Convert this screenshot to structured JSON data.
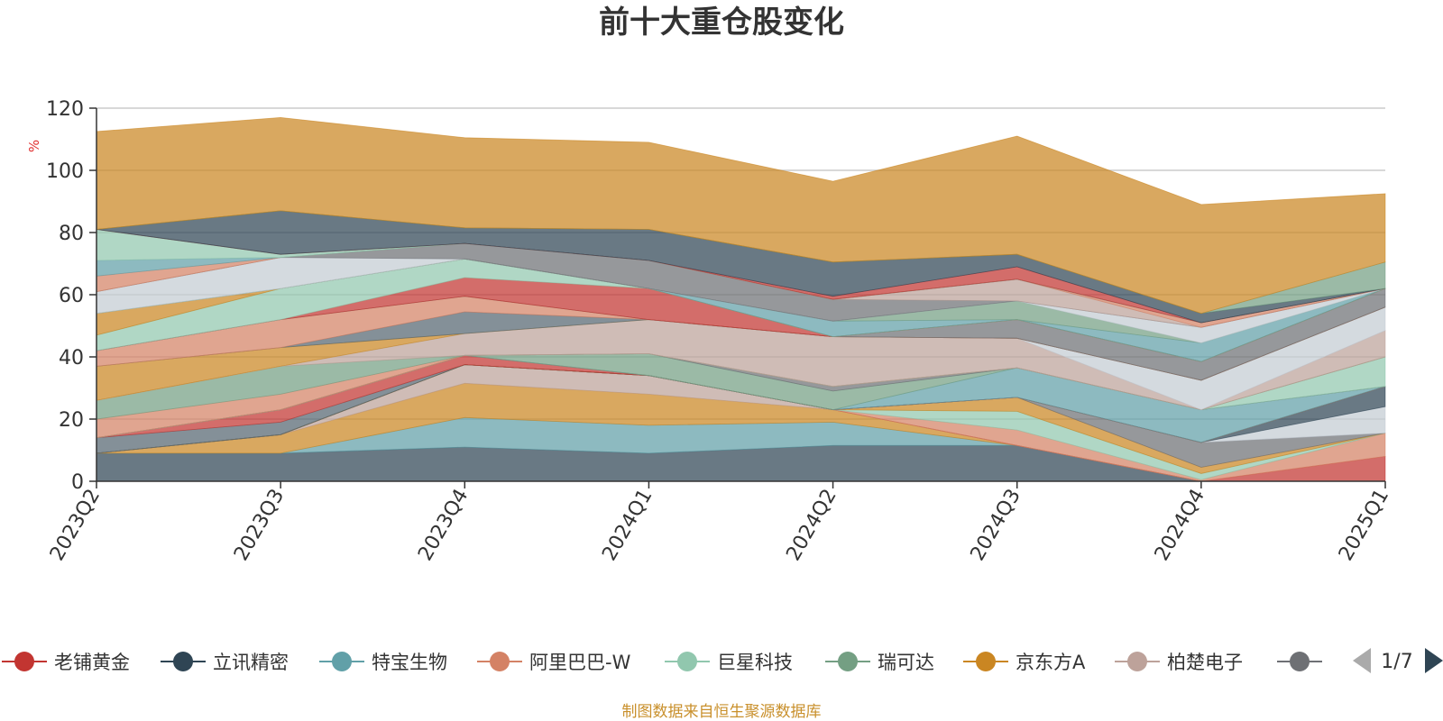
{
  "chart_data": {
    "type": "area",
    "stacked": true,
    "title": "前十大重仓股变化",
    "ylabel": "%",
    "ylim": [
      0,
      120
    ],
    "yticks": [
      0,
      20,
      40,
      60,
      80,
      100,
      120
    ],
    "categories": [
      "2023Q2",
      "2023Q3",
      "2023Q4",
      "2024Q1",
      "2024Q2",
      "2024Q3",
      "2024Q4",
      "2025Q1"
    ],
    "grid": true,
    "legend_position": "bottom",
    "series": [
      {
        "name": "",
        "color": "#2f4554",
        "values": [
          9,
          9,
          11,
          9,
          11.5,
          11.5,
          0,
          0
        ]
      },
      {
        "name": "",
        "color": "#61a0a8",
        "values": [
          0,
          0,
          9.5,
          9,
          7.5,
          0,
          0,
          0
        ]
      },
      {
        "name": "",
        "color": "#ca8622",
        "values": [
          0,
          6,
          11,
          10,
          4,
          0,
          0,
          0
        ]
      },
      {
        "name": "",
        "color": "#bda29a",
        "values": [
          0,
          0,
          6,
          6,
          0,
          0,
          0,
          0
        ]
      },
      {
        "name": "老铺黄金",
        "color": "#c23531",
        "values": [
          0,
          0,
          0,
          0,
          0,
          0,
          0,
          8
        ]
      },
      {
        "name": "阿里巴巴-W",
        "color": "#d48265",
        "values": [
          0,
          0,
          0,
          0,
          0,
          5,
          0.5,
          7.5
        ]
      },
      {
        "name": "巨星科技",
        "color": "#91c7ae",
        "values": [
          0,
          0,
          0,
          0,
          0,
          6,
          2,
          0
        ]
      },
      {
        "name": "京东方A",
        "color": "#ca8622",
        "values": [
          0,
          0,
          0,
          0,
          0,
          4.5,
          2,
          0
        ]
      },
      {
        "name": "",
        "color": "#6e7074",
        "values": [
          0,
          0,
          0,
          0,
          0,
          0,
          8,
          0
        ]
      },
      {
        "name": "",
        "color": "#c4ccd3",
        "values": [
          0,
          0,
          0,
          0,
          0,
          0,
          0,
          8.5
        ]
      },
      {
        "name": "立讯精密",
        "color": "#2f4554",
        "values": [
          0,
          0,
          0,
          0,
          0,
          0,
          0,
          6.5
        ]
      },
      {
        "name": "",
        "color": "#ca8622",
        "values": [
          0,
          0,
          0,
          0,
          0,
          0,
          0,
          0
        ]
      },
      {
        "name": "",
        "color": "#546570",
        "values": [
          5,
          4,
          0,
          0,
          0,
          0,
          0,
          0
        ]
      },
      {
        "name": "",
        "color": "#c23531",
        "values": [
          0,
          4,
          3,
          0,
          0,
          0,
          0,
          0
        ]
      },
      {
        "name": "特宝生物",
        "color": "#61a0a8",
        "values": [
          0,
          0,
          0,
          0,
          0,
          9.5,
          10.5,
          0
        ]
      },
      {
        "name": "瑞可达",
        "color": "#749f83",
        "values": [
          0,
          0,
          0,
          7,
          6,
          0,
          0,
          0
        ]
      },
      {
        "name": "",
        "color": "#6e7074",
        "values": [
          0,
          0,
          0,
          0,
          1.5,
          0,
          0,
          0
        ]
      },
      {
        "name": "",
        "color": "#91c7ae",
        "values": [
          0,
          0,
          0,
          0,
          0,
          0,
          0,
          9.5
        ]
      },
      {
        "name": "",
        "color": "#d48265",
        "values": [
          6,
          5,
          0,
          0,
          0,
          0,
          0,
          0
        ]
      },
      {
        "name": "",
        "color": "#749f83",
        "values": [
          6,
          9,
          0,
          0,
          0,
          0,
          0,
          0
        ]
      },
      {
        "name": "柏楚电子",
        "color": "#bda29a",
        "values": [
          0,
          0,
          7,
          11,
          16,
          9.5,
          0,
          8.5
        ]
      },
      {
        "name": "",
        "color": "#c4ccd3",
        "values": [
          0,
          0,
          0,
          0,
          0,
          0,
          9.5,
          7.5
        ]
      },
      {
        "name": "",
        "color": "#ca8622",
        "values": [
          11,
          6,
          0,
          0,
          0,
          0,
          0,
          0
        ]
      },
      {
        "name": "",
        "color": "#546570",
        "values": [
          0,
          0,
          7,
          0,
          0,
          0,
          0,
          0
        ]
      },
      {
        "name": "",
        "color": "#d48265",
        "values": [
          5,
          9,
          5,
          0,
          0,
          0,
          0,
          0
        ]
      },
      {
        "name": "",
        "color": "#6e7074",
        "values": [
          0,
          0,
          0,
          0,
          0,
          6,
          6,
          6
        ]
      },
      {
        "name": "",
        "color": "#c23531",
        "values": [
          0,
          0,
          6,
          10,
          0,
          0,
          0,
          0
        ]
      },
      {
        "name": "",
        "color": "#91c7ae",
        "values": [
          5,
          10,
          6,
          0,
          0,
          0,
          0,
          0
        ]
      },
      {
        "name": "",
        "color": "#ca8622",
        "values": [
          7,
          0,
          0,
          0,
          0,
          0,
          0,
          0
        ]
      },
      {
        "name": "",
        "color": "#61a0a8",
        "values": [
          0,
          0,
          0,
          0,
          5,
          0,
          6,
          0
        ]
      },
      {
        "name": "",
        "color": "#749f83",
        "values": [
          0,
          0,
          0,
          0,
          0,
          6,
          0,
          0
        ]
      },
      {
        "name": "",
        "color": "#c4ccd3",
        "values": [
          7,
          10,
          0,
          0,
          0,
          0,
          5,
          0
        ]
      },
      {
        "name": "",
        "color": "#6e7074",
        "values": [
          0,
          0,
          5,
          9,
          7,
          0,
          0,
          0
        ]
      },
      {
        "name": "",
        "color": "#bda29a",
        "values": [
          0,
          0,
          0,
          0,
          0,
          7,
          0,
          0
        ]
      },
      {
        "name": "",
        "color": "#d48265",
        "values": [
          5,
          0,
          0,
          0,
          0,
          0,
          1.5,
          0
        ]
      },
      {
        "name": "",
        "color": "#61a0a8",
        "values": [
          5,
          0,
          0,
          0,
          0,
          0,
          0,
          0
        ]
      },
      {
        "name": "",
        "color": "#91c7ae",
        "values": [
          10,
          1,
          0,
          0,
          0,
          0,
          0,
          0
        ]
      },
      {
        "name": "",
        "color": "#c23531",
        "values": [
          0,
          0,
          0,
          0,
          1,
          4,
          0,
          0
        ]
      },
      {
        "name": "",
        "color": "#2f4554",
        "values": [
          0,
          14,
          5,
          10,
          11,
          4,
          3,
          0
        ]
      },
      {
        "name": "",
        "color": "#749f83",
        "values": [
          0,
          0,
          0,
          0,
          0,
          0,
          0,
          8.5
        ]
      },
      {
        "name": "",
        "color": "#ca8622",
        "values": [
          31.5,
          30,
          29,
          28,
          26,
          38,
          35,
          22
        ]
      }
    ]
  },
  "legend": {
    "items": [
      {
        "label": "老铺黄金",
        "color": "#c23531"
      },
      {
        "label": "立讯精密",
        "color": "#2f4554"
      },
      {
        "label": "特宝生物",
        "color": "#61a0a8"
      },
      {
        "label": "阿里巴巴-W",
        "color": "#d48265"
      },
      {
        "label": "巨星科技",
        "color": "#91c7ae"
      },
      {
        "label": "瑞可达",
        "color": "#749f83"
      },
      {
        "label": "京东方A",
        "color": "#ca8622"
      },
      {
        "label": "柏楚电子",
        "color": "#bda29a"
      },
      {
        "label": "",
        "color": "#6e7074"
      }
    ],
    "page": "1/7"
  },
  "source": "制图数据来自恒生聚源数据库"
}
